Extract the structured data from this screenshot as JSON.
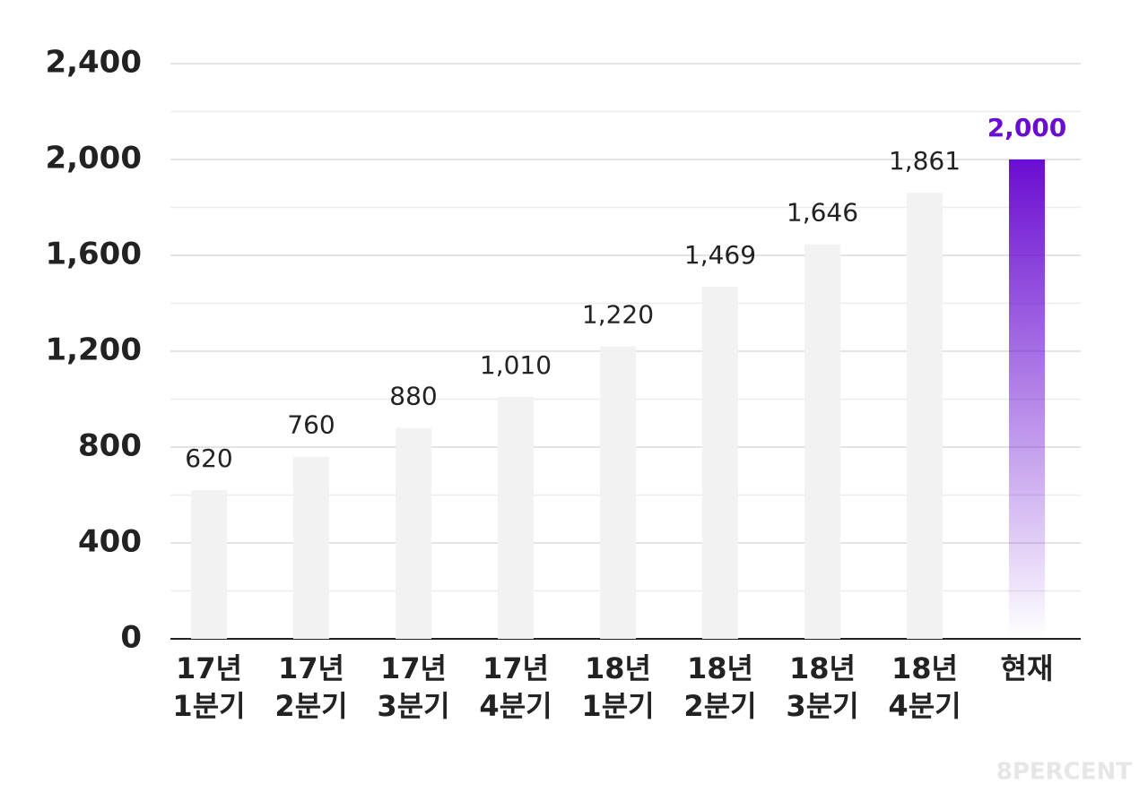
{
  "chart_data": {
    "type": "bar",
    "categories": [
      [
        "17년",
        "1분기"
      ],
      [
        "17년",
        "2분기"
      ],
      [
        "17년",
        "3분기"
      ],
      [
        "17년",
        "4분기"
      ],
      [
        "18년",
        "1분기"
      ],
      [
        "18년",
        "2분기"
      ],
      [
        "18년",
        "3분기"
      ],
      [
        "18년",
        "4분기"
      ],
      [
        "현재"
      ]
    ],
    "values": [
      620,
      760,
      880,
      1010,
      1220,
      1469,
      1646,
      1861,
      2000
    ],
    "value_labels": [
      "620",
      "760",
      "880",
      "1,010",
      "1,220",
      "1,469",
      "1,646",
      "1,861",
      "2,000"
    ],
    "colors": [
      "#f2f2f2",
      "#f2f2f2",
      "#f2f2f2",
      "#f2f2f2",
      "#f2f2f2",
      "#f2f2f2",
      "#f2f2f2",
      "#f2f2f2",
      "#6a0dd1"
    ],
    "label_colors": [
      "#222222",
      "#222222",
      "#222222",
      "#222222",
      "#222222",
      "#222222",
      "#222222",
      "#222222",
      "#6a0dd1"
    ],
    "ylim": [
      0,
      2400
    ],
    "yticks": [
      0,
      400,
      800,
      {
        "value": 1200,
        "label": "1,200"
      },
      {
        "value": 1600,
        "label": "1,600"
      },
      {
        "value": 2000,
        "label": "2,000"
      },
      {
        "value": 2400,
        "label": "2,400"
      }
    ],
    "minor_yticks": [
      200,
      600,
      1000,
      1400,
      1800,
      2200
    ],
    "grid": true,
    "watermark": "8PERCENT"
  }
}
